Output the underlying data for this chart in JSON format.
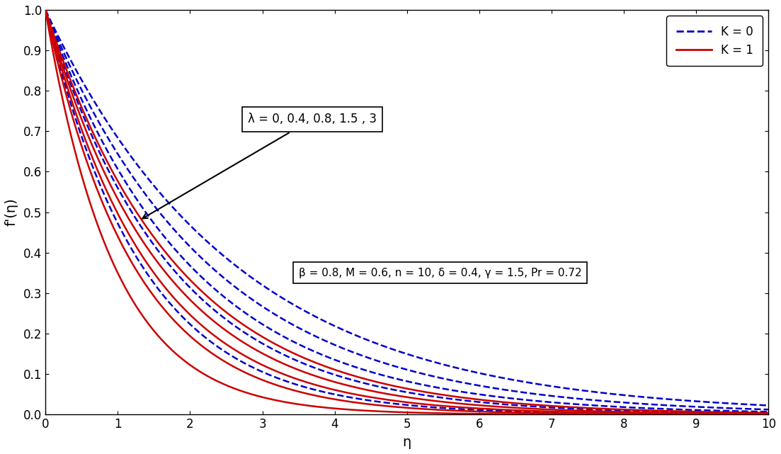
{
  "title": "",
  "xlabel": "η",
  "ylabel": "f'(η)",
  "xlim": [
    0,
    10
  ],
  "ylim": [
    0,
    1
  ],
  "xticks": [
    0,
    1,
    2,
    3,
    4,
    5,
    6,
    7,
    8,
    9,
    10
  ],
  "yticks": [
    0,
    0.1,
    0.2,
    0.3,
    0.4,
    0.5,
    0.6,
    0.7,
    0.8,
    0.9,
    1
  ],
  "lambda_values": [
    0,
    0.4,
    0.8,
    1.5,
    3
  ],
  "eta_max": 10,
  "eta_points": 1000,
  "blue_color": "#0000CC",
  "red_color": "#CC0000",
  "annotation_lambda": "λ = 0, 0.4, 0.8, 1.5 , 3",
  "annotation_params": "β = 0.8, M = 0.6, n = 10, δ = 0.4, γ = 1.5, Pr = 0.72",
  "legend_labels": [
    "K = 0",
    "K = 1"
  ],
  "background_color": "#ffffff",
  "figsize": [
    11.03,
    6.41
  ],
  "dpi": 100,
  "decay_rates_K0": [
    0.38,
    0.44,
    0.5,
    0.58,
    0.75
  ],
  "decay_rates_K1": [
    0.55,
    0.63,
    0.7,
    0.82,
    1.05
  ]
}
